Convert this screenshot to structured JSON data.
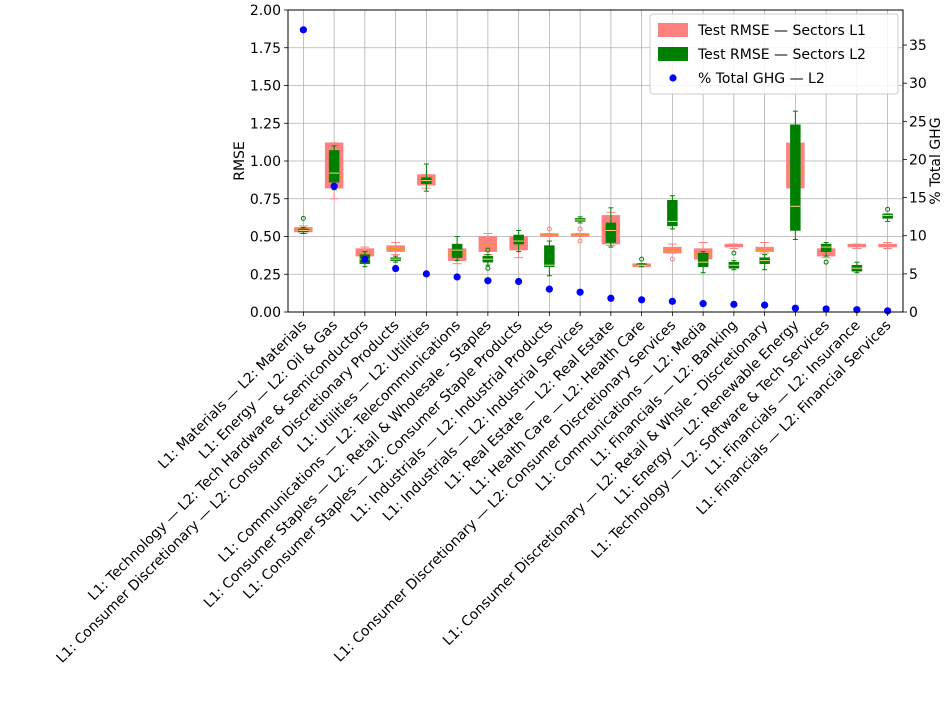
{
  "chart_data": {
    "type": "box",
    "ylabel": "RMSE",
    "y2label": "% Total GHG",
    "ylim": [
      0,
      2.0
    ],
    "y2lim": [
      0,
      39.6
    ],
    "yticks": [
      "0.00",
      "0.25",
      "0.50",
      "0.75",
      "1.00",
      "1.25",
      "1.50",
      "1.75",
      "2.00"
    ],
    "y2ticks": [
      "0",
      "5",
      "10",
      "15",
      "20",
      "25",
      "30",
      "35"
    ],
    "grid": true,
    "legend_position": "top-right",
    "legend": [
      {
        "label": "Test RMSE — Sectors L1",
        "symbol": "patch",
        "color": "#ff8080"
      },
      {
        "label": "Test RMSE — Sectors L2",
        "symbol": "patch",
        "color": "#008000"
      },
      {
        "label": "% Total GHG — L2",
        "symbol": "dot",
        "color": "#0000ff"
      }
    ],
    "categories": [
      "L1: Materials — L2: Materials",
      "L1: Energy — L2: Oil & Gas",
      "L1: Technology — L2: Tech Hardware & Semiconductors",
      "L1: Consumer Discretionary — L2: Consumer Discretionary Products",
      "L1: Utilities — L2: Utilities",
      "L1: Communications — L2: Telecommunications",
      "L1: Consumer Staples — L2: Retail & Wholesale - Staples",
      "L1: Consumer Staples — L2: Consumer Staple Products",
      "L1: Industrials — L2: Industrial Products",
      "L1: Industrials — L2: Industrial Services",
      "L1: Real Estate — L2: Real Estate",
      "L1: Health Care — L2: Health Care",
      "L1: Consumer Discretionary — L2: Consumer Discretionary Services",
      "L1: Communications — L2: Media",
      "L1: Financials — L2: Banking",
      "L1: Consumer Discretionary — L2: Retail & Whsle - Discretionary",
      "L1: Energy — L2: Renewable Energy",
      "L1: Technology — L2: Software & Tech Services",
      "L1: Financials — L2: Insurance",
      "L1: Financials — L2: Financial Services"
    ],
    "series": [
      {
        "name": "Test RMSE — Sectors L1",
        "color": "#ff8080",
        "boxes": [
          {
            "whislo": 0.52,
            "q1": 0.53,
            "med": 0.55,
            "q3": 0.56,
            "whishi": 0.57,
            "fliers": []
          },
          {
            "whislo": 0.75,
            "q1": 0.82,
            "med": 0.9,
            "q3": 1.12,
            "whishi": 1.12,
            "fliers": []
          },
          {
            "whislo": 0.33,
            "q1": 0.37,
            "med": 0.39,
            "q3": 0.42,
            "whishi": 0.43,
            "fliers": []
          },
          {
            "whislo": 0.38,
            "q1": 0.4,
            "med": 0.42,
            "q3": 0.44,
            "whishi": 0.46,
            "fliers": []
          },
          {
            "whislo": 0.82,
            "q1": 0.84,
            "med": 0.88,
            "q3": 0.91,
            "whishi": 0.91,
            "fliers": []
          },
          {
            "whislo": 0.32,
            "q1": 0.34,
            "med": 0.38,
            "q3": 0.42,
            "whishi": 0.43,
            "fliers": []
          },
          {
            "whislo": 0.38,
            "q1": 0.4,
            "med": 0.45,
            "q3": 0.5,
            "whishi": 0.52,
            "fliers": []
          },
          {
            "whislo": 0.36,
            "q1": 0.41,
            "med": 0.44,
            "q3": 0.5,
            "whishi": 0.5,
            "fliers": []
          },
          {
            "whislo": 0.5,
            "q1": 0.5,
            "med": 0.51,
            "q3": 0.52,
            "whishi": 0.52,
            "fliers": [
              0.55,
              0.32
            ]
          },
          {
            "whislo": 0.5,
            "q1": 0.5,
            "med": 0.51,
            "q3": 0.52,
            "whishi": 0.52,
            "fliers": [
              0.55,
              0.47
            ]
          },
          {
            "whislo": 0.44,
            "q1": 0.45,
            "med": 0.55,
            "q3": 0.64,
            "whishi": 0.66,
            "fliers": []
          },
          {
            "whislo": 0.3,
            "q1": 0.3,
            "med": 0.31,
            "q3": 0.32,
            "whishi": 0.32,
            "fliers": []
          },
          {
            "whislo": 0.39,
            "q1": 0.39,
            "med": 0.41,
            "q3": 0.43,
            "whishi": 0.45,
            "fliers": [
              0.35
            ]
          },
          {
            "whislo": 0.33,
            "q1": 0.35,
            "med": 0.38,
            "q3": 0.42,
            "whishi": 0.46,
            "fliers": []
          },
          {
            "whislo": 0.42,
            "q1": 0.43,
            "med": 0.44,
            "q3": 0.45,
            "whishi": 0.45,
            "fliers": []
          },
          {
            "whislo": 0.39,
            "q1": 0.4,
            "med": 0.41,
            "q3": 0.43,
            "whishi": 0.46,
            "fliers": []
          },
          {
            "whislo": 0.74,
            "q1": 0.82,
            "med": 0.92,
            "q3": 1.12,
            "whishi": 1.15,
            "fliers": []
          },
          {
            "whislo": 0.36,
            "q1": 0.37,
            "med": 0.4,
            "q3": 0.42,
            "whishi": 0.43,
            "fliers": []
          },
          {
            "whislo": 0.42,
            "q1": 0.43,
            "med": 0.44,
            "q3": 0.45,
            "whishi": 0.45,
            "fliers": []
          },
          {
            "whislo": 0.42,
            "q1": 0.43,
            "med": 0.44,
            "q3": 0.45,
            "whishi": 0.46,
            "fliers": []
          }
        ]
      },
      {
        "name": "Test RMSE — Sectors L2",
        "color": "#008000",
        "boxes": [
          {
            "whislo": 0.52,
            "q1": 0.53,
            "med": 0.54,
            "q3": 0.55,
            "whishi": 0.56,
            "fliers": [
              0.62
            ]
          },
          {
            "whislo": 0.81,
            "q1": 0.86,
            "med": 0.92,
            "q3": 1.07,
            "whishi": 1.1,
            "fliers": []
          },
          {
            "whislo": 0.3,
            "q1": 0.32,
            "med": 0.35,
            "q3": 0.38,
            "whishi": 0.4,
            "fliers": []
          },
          {
            "whislo": 0.33,
            "q1": 0.34,
            "med": 0.35,
            "q3": 0.36,
            "whishi": 0.37,
            "fliers": []
          },
          {
            "whislo": 0.8,
            "q1": 0.85,
            "med": 0.87,
            "q3": 0.89,
            "whishi": 0.98,
            "fliers": []
          },
          {
            "whislo": 0.34,
            "q1": 0.36,
            "med": 0.41,
            "q3": 0.45,
            "whishi": 0.5,
            "fliers": []
          },
          {
            "whislo": 0.31,
            "q1": 0.33,
            "med": 0.35,
            "q3": 0.37,
            "whishi": 0.38,
            "fliers": [
              0.29,
              0.41
            ]
          },
          {
            "whislo": 0.4,
            "q1": 0.45,
            "med": 0.47,
            "q3": 0.51,
            "whishi": 0.54,
            "fliers": []
          },
          {
            "whislo": 0.24,
            "q1": 0.3,
            "med": 0.31,
            "q3": 0.44,
            "whishi": 0.47,
            "fliers": []
          },
          {
            "whislo": 0.59,
            "q1": 0.6,
            "med": 0.61,
            "q3": 0.62,
            "whishi": 0.63,
            "fliers": []
          },
          {
            "whislo": 0.43,
            "q1": 0.46,
            "med": 0.54,
            "q3": 0.59,
            "whishi": 0.69,
            "fliers": []
          },
          {
            "whislo": 0.3,
            "q1": 0.31,
            "med": 0.31,
            "q3": 0.32,
            "whishi": 0.32,
            "fliers": [
              0.35
            ]
          },
          {
            "whislo": 0.55,
            "q1": 0.57,
            "med": 0.6,
            "q3": 0.74,
            "whishi": 0.77,
            "fliers": []
          },
          {
            "whislo": 0.26,
            "q1": 0.3,
            "med": 0.33,
            "q3": 0.39,
            "whishi": 0.4,
            "fliers": []
          },
          {
            "whislo": 0.28,
            "q1": 0.29,
            "med": 0.31,
            "q3": 0.33,
            "whishi": 0.34,
            "fliers": [
              0.39
            ]
          },
          {
            "whislo": 0.28,
            "q1": 0.32,
            "med": 0.34,
            "q3": 0.36,
            "whishi": 0.38,
            "fliers": []
          },
          {
            "whislo": 0.48,
            "q1": 0.54,
            "med": 0.7,
            "q3": 1.24,
            "whishi": 1.33,
            "fliers": []
          },
          {
            "whislo": 0.37,
            "q1": 0.4,
            "med": 0.43,
            "q3": 0.45,
            "whishi": 0.46,
            "fliers": [
              0.33
            ]
          },
          {
            "whislo": 0.26,
            "q1": 0.27,
            "med": 0.29,
            "q3": 0.31,
            "whishi": 0.33,
            "fliers": []
          },
          {
            "whislo": 0.6,
            "q1": 0.62,
            "med": 0.64,
            "q3": 0.65,
            "whishi": 0.65,
            "fliers": [
              0.68
            ]
          }
        ]
      },
      {
        "name": "% Total GHG — L2",
        "color": "#0000ff",
        "axis": "right",
        "values": [
          37.0,
          16.5,
          6.9,
          5.7,
          5.0,
          4.6,
          4.1,
          4.0,
          3.0,
          2.6,
          1.8,
          1.6,
          1.4,
          1.1,
          1.0,
          0.9,
          0.5,
          0.4,
          0.3,
          0.15
        ]
      }
    ]
  }
}
